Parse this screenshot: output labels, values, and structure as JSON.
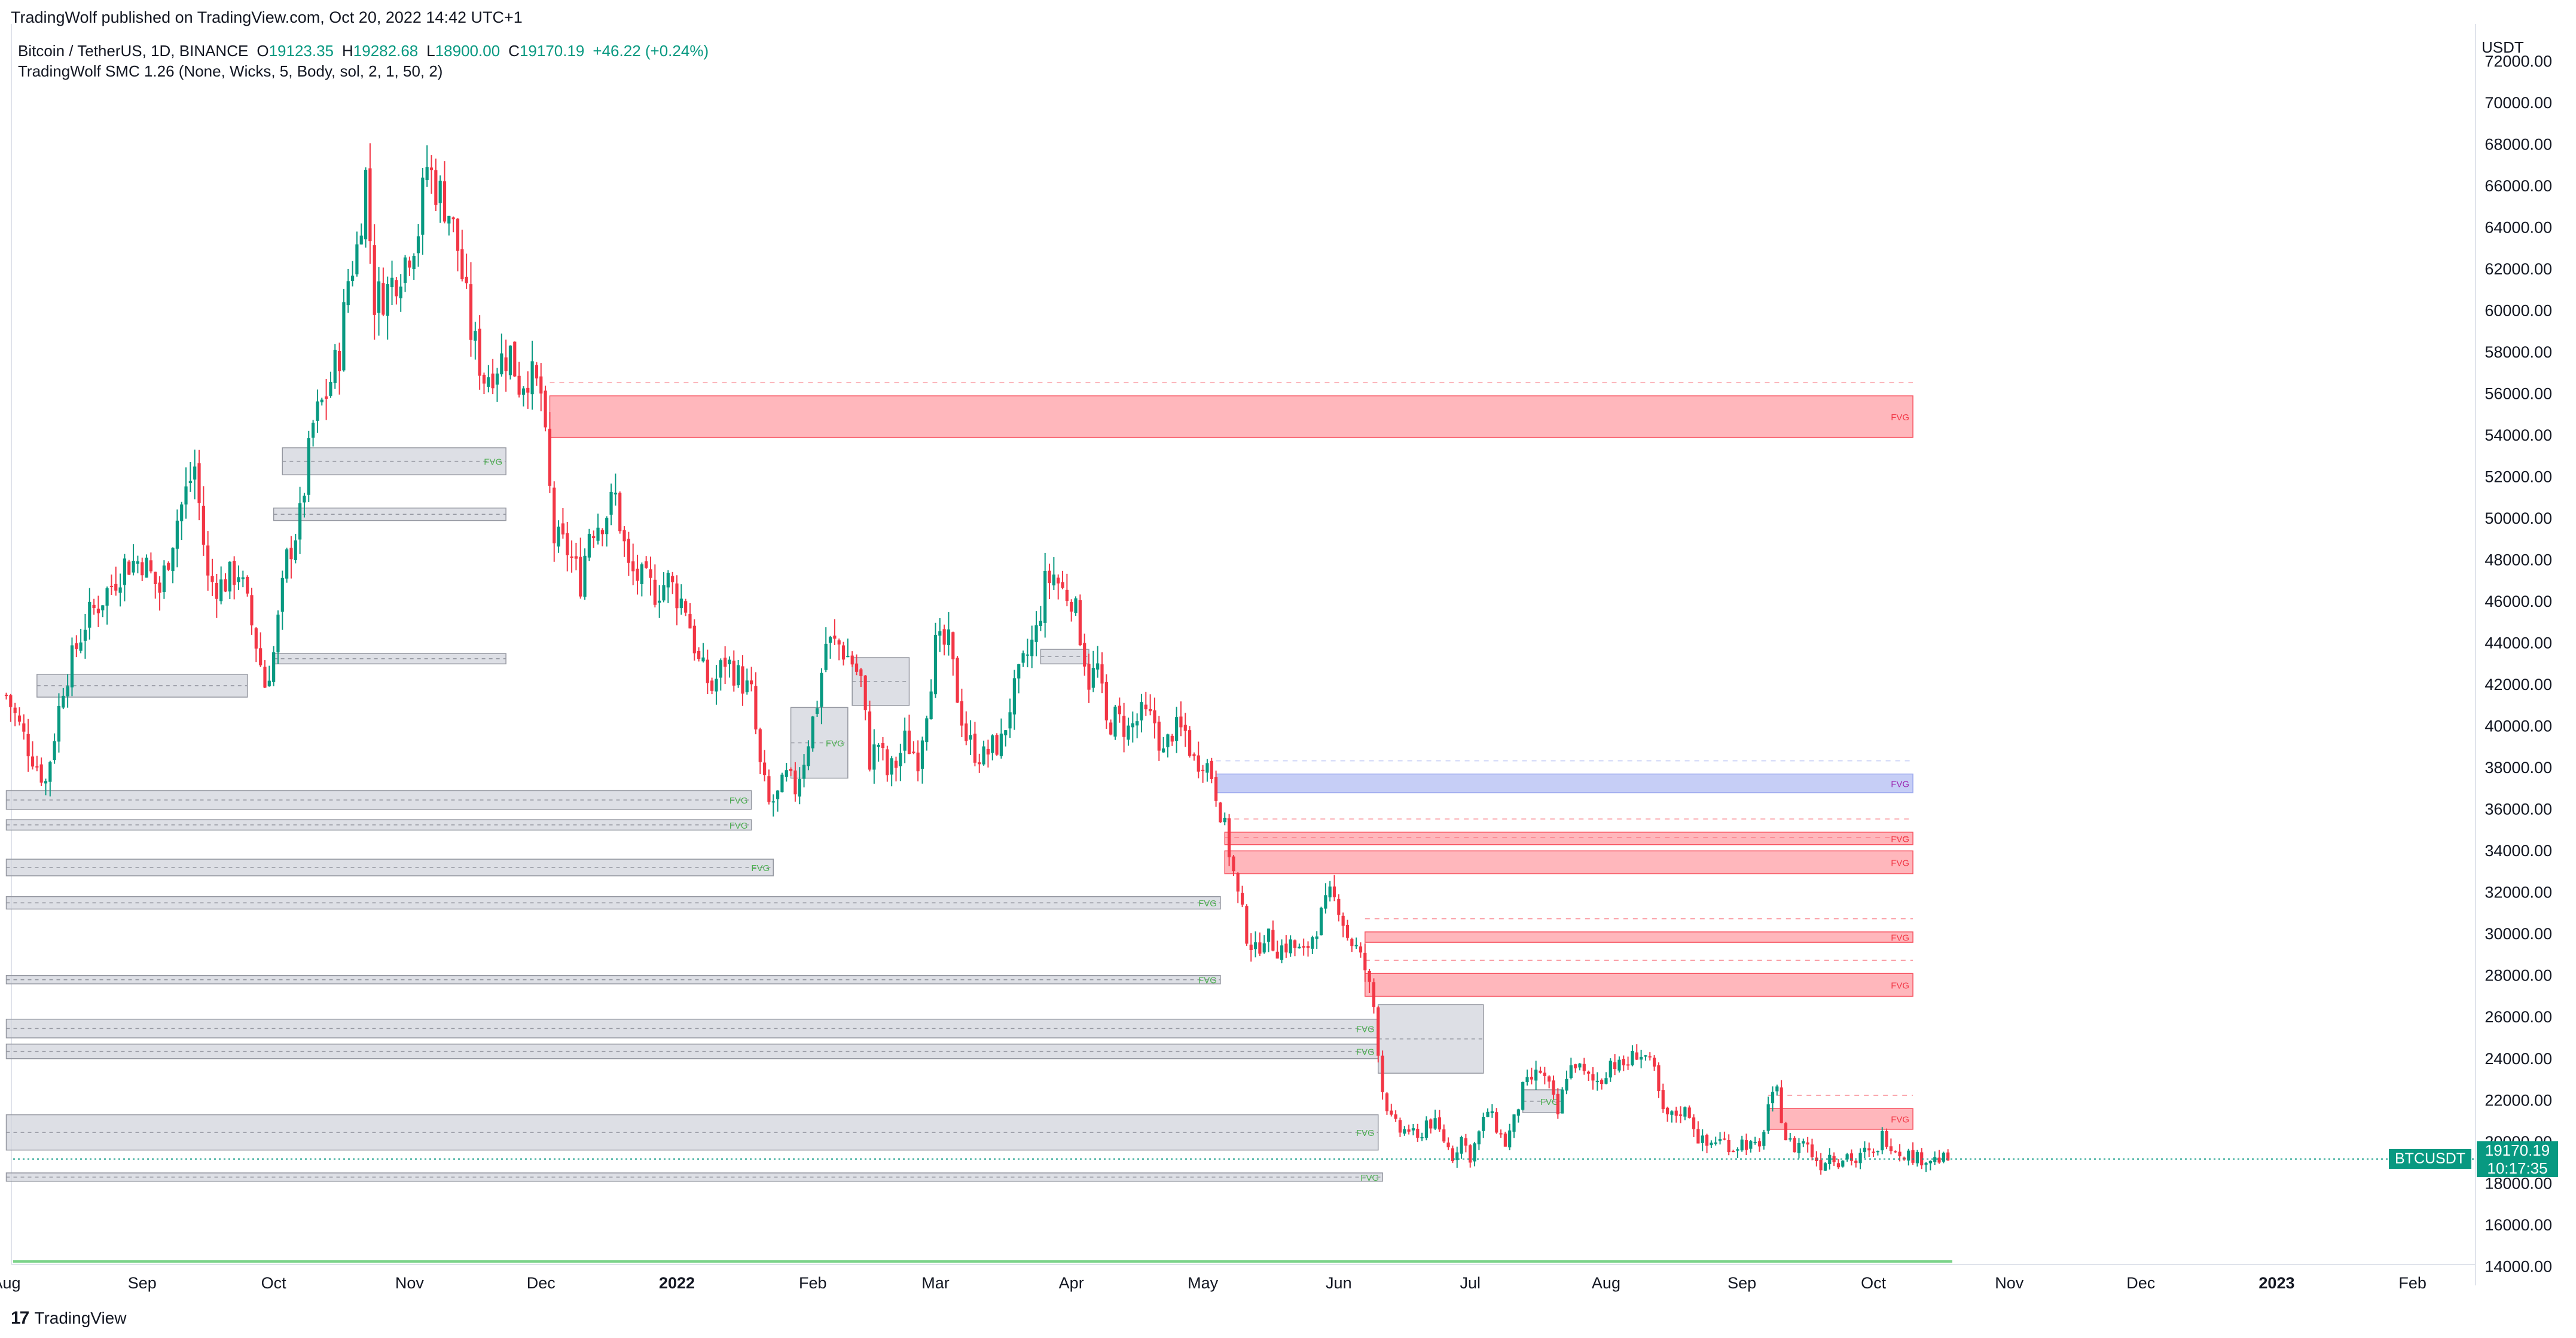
{
  "header": {
    "published": "TradingWolf published on TradingView.com, Oct 20, 2022 14:42 UTC+1",
    "symbol": "Bitcoin / TetherUS, 1D, BINANCE",
    "o_key": "O",
    "o_val": "19123.35",
    "h_key": "H",
    "h_val": "19282.68",
    "l_key": "L",
    "l_val": "18900.00",
    "c_key": "C",
    "c_val": "19170.19",
    "change": "+46.22 (+0.24%)",
    "indicator": "TradingWolf SMC 1.26 (None, Wicks, 5, Body, sol, 2, 1, 50, 2)"
  },
  "axis": {
    "currency": "USDT"
  },
  "last_price": {
    "symbol_tag": "BTCUSDT",
    "price": "19170.19",
    "countdown": "10:17:35"
  },
  "footer": {
    "brand_mark": "17",
    "brand": "TradingView"
  },
  "colors": {
    "up": "#089981",
    "down": "#f23645",
    "fvg_red": "#ffb3b8",
    "fvg_blue": "#c3cbf5",
    "ob_grey": "#d1d4dc"
  },
  "chart_data": {
    "type": "candlestick",
    "ylim": [
      12800,
      73800
    ],
    "y_ticks": [
      14000,
      16000,
      18000,
      20000,
      22000,
      24000,
      26000,
      28000,
      30000,
      32000,
      34000,
      36000,
      38000,
      40000,
      42000,
      44000,
      46000,
      48000,
      50000,
      52000,
      54000,
      56000,
      58000,
      60000,
      62000,
      64000,
      66000,
      68000,
      70000,
      72000
    ],
    "x_ticks": [
      {
        "label": "Aug",
        "d": -153,
        "bold": false
      },
      {
        "label": "Sep",
        "d": -122,
        "bold": false
      },
      {
        "label": "Oct",
        "d": -92,
        "bold": false
      },
      {
        "label": "Nov",
        "d": -61,
        "bold": false
      },
      {
        "label": "Dec",
        "d": -31,
        "bold": false
      },
      {
        "label": "2022",
        "d": 0,
        "bold": true
      },
      {
        "label": "Feb",
        "d": 31,
        "bold": false
      },
      {
        "label": "Mar",
        "d": 59,
        "bold": false
      },
      {
        "label": "Apr",
        "d": 90,
        "bold": false
      },
      {
        "label": "May",
        "d": 120,
        "bold": false
      },
      {
        "label": "Jun",
        "d": 151,
        "bold": false
      },
      {
        "label": "Jul",
        "d": 181,
        "bold": false
      },
      {
        "label": "Aug",
        "d": 212,
        "bold": false
      },
      {
        "label": "Sep",
        "d": 243,
        "bold": false
      },
      {
        "label": "Oct",
        "d": 273,
        "bold": false
      },
      {
        "label": "Nov",
        "d": 304,
        "bold": false
      },
      {
        "label": "Dec",
        "d": 334,
        "bold": false
      },
      {
        "label": "2023",
        "d": 365,
        "bold": true
      },
      {
        "label": "Feb",
        "d": 396,
        "bold": false
      }
    ],
    "close_path": [
      [
        -153,
        41500
      ],
      [
        -148,
        39000
      ],
      [
        -144,
        37300
      ],
      [
        -140,
        42000
      ],
      [
        -135,
        45000
      ],
      [
        -130,
        46500
      ],
      [
        -126,
        47800
      ],
      [
        -122,
        48000
      ],
      [
        -118,
        46500
      ],
      [
        -114,
        50000
      ],
      [
        -110,
        52500
      ],
      [
        -107,
        47000
      ],
      [
        -104,
        46800
      ],
      [
        -100,
        47500
      ],
      [
        -96,
        44000
      ],
      [
        -94,
        42000
      ],
      [
        -92,
        43500
      ],
      [
        -89,
        48000
      ],
      [
        -86,
        50000
      ],
      [
        -83,
        54500
      ],
      [
        -80,
        56000
      ],
      [
        -77,
        58000
      ],
      [
        -75,
        61500
      ],
      [
        -73,
        63000
      ],
      [
        -71,
        66500
      ],
      [
        -69,
        60500
      ],
      [
        -66,
        61000
      ],
      [
        -62,
        62500
      ],
      [
        -59,
        64000
      ],
      [
        -57,
        67000
      ],
      [
        -55,
        66000
      ],
      [
        -52,
        64800
      ],
      [
        -50,
        63000
      ],
      [
        -47,
        59000
      ],
      [
        -44,
        56800
      ],
      [
        -41,
        57500
      ],
      [
        -38,
        58000
      ],
      [
        -36,
        56500
      ],
      [
        -34,
        57000
      ],
      [
        -31,
        56000
      ],
      [
        -30,
        53500
      ],
      [
        -28,
        49000
      ],
      [
        -25,
        48500
      ],
      [
        -22,
        47000
      ],
      [
        -20,
        49500
      ],
      [
        -17,
        50000
      ],
      [
        -14,
        51000
      ],
      [
        -11,
        47500
      ],
      [
        -8,
        47000
      ],
      [
        -5,
        46500
      ],
      [
        -2,
        47000
      ],
      [
        0,
        46300
      ],
      [
        2,
        45800
      ],
      [
        5,
        43000
      ],
      [
        8,
        41800
      ],
      [
        11,
        43200
      ],
      [
        14,
        42400
      ],
      [
        17,
        41500
      ],
      [
        19,
        38000
      ],
      [
        21,
        36200
      ],
      [
        23,
        36600
      ],
      [
        25,
        37500
      ],
      [
        27,
        37000
      ],
      [
        29,
        38500
      ],
      [
        32,
        41200
      ],
      [
        34,
        44000
      ],
      [
        37,
        43900
      ],
      [
        40,
        43100
      ],
      [
        42,
        42200
      ],
      [
        44,
        38400
      ],
      [
        46,
        39200
      ],
      [
        48,
        37700
      ],
      [
        50,
        38200
      ],
      [
        52,
        39300
      ],
      [
        55,
        38500
      ],
      [
        57,
        41000
      ],
      [
        59,
        43800
      ],
      [
        62,
        43900
      ],
      [
        64,
        41500
      ],
      [
        66,
        39500
      ],
      [
        68,
        38800
      ],
      [
        70,
        38500
      ],
      [
        72,
        39000
      ],
      [
        74,
        39200
      ],
      [
        76,
        41000
      ],
      [
        79,
        42900
      ],
      [
        82,
        44500
      ],
      [
        84,
        46800
      ],
      [
        86,
        47300
      ],
      [
        88,
        46500
      ],
      [
        90,
        46300
      ],
      [
        92,
        44500
      ],
      [
        94,
        42200
      ],
      [
        96,
        42800
      ],
      [
        98,
        40000
      ],
      [
        100,
        40400
      ],
      [
        103,
        39800
      ],
      [
        106,
        40500
      ],
      [
        109,
        40200
      ],
      [
        111,
        38600
      ],
      [
        113,
        39800
      ],
      [
        116,
        39700
      ],
      [
        118,
        38300
      ],
      [
        120,
        38500
      ],
      [
        122,
        37700
      ],
      [
        124,
        36000
      ],
      [
        126,
        34000
      ],
      [
        128,
        31800
      ],
      [
        130,
        30000
      ],
      [
        132,
        29100
      ],
      [
        134,
        30000
      ],
      [
        137,
        29300
      ],
      [
        140,
        29500
      ],
      [
        143,
        29000
      ],
      [
        146,
        30400
      ],
      [
        149,
        31800
      ],
      [
        151,
        31400
      ],
      [
        153,
        29900
      ],
      [
        155,
        29300
      ],
      [
        157,
        28300
      ],
      [
        159,
        26500
      ],
      [
        161,
        22500
      ],
      [
        163,
        21000
      ],
      [
        165,
        20500
      ],
      [
        167,
        20600
      ],
      [
        169,
        20000
      ],
      [
        171,
        21000
      ],
      [
        173,
        20800
      ],
      [
        175,
        20100
      ],
      [
        177,
        19300
      ],
      [
        179,
        20200
      ],
      [
        181,
        19300
      ],
      [
        183,
        20400
      ],
      [
        185,
        21500
      ],
      [
        187,
        20700
      ],
      [
        189,
        19900
      ],
      [
        191,
        21000
      ],
      [
        193,
        22500
      ],
      [
        195,
        23000
      ],
      [
        197,
        23400
      ],
      [
        199,
        22600
      ],
      [
        201,
        21300
      ],
      [
        203,
        23300
      ],
      [
        205,
        23800
      ],
      [
        207,
        23200
      ],
      [
        209,
        22900
      ],
      [
        211,
        23000
      ],
      [
        213,
        23900
      ],
      [
        215,
        23600
      ],
      [
        217,
        23800
      ],
      [
        219,
        24300
      ],
      [
        221,
        24100
      ],
      [
        223,
        23300
      ],
      [
        225,
        21300
      ],
      [
        227,
        21200
      ],
      [
        229,
        21500
      ],
      [
        231,
        21400
      ],
      [
        233,
        20200
      ],
      [
        235,
        19800
      ],
      [
        237,
        20100
      ],
      [
        239,
        20000
      ],
      [
        241,
        19700
      ],
      [
        243,
        20000
      ],
      [
        245,
        19800
      ],
      [
        247,
        19600
      ],
      [
        249,
        21800
      ],
      [
        251,
        22300
      ],
      [
        253,
        20200
      ],
      [
        255,
        19700
      ],
      [
        257,
        20100
      ],
      [
        259,
        19400
      ],
      [
        261,
        18900
      ],
      [
        263,
        19400
      ],
      [
        265,
        19100
      ],
      [
        267,
        19400
      ],
      [
        269,
        19000
      ],
      [
        271,
        19500
      ],
      [
        273,
        19300
      ],
      [
        275,
        20300
      ],
      [
        277,
        19900
      ],
      [
        279,
        19500
      ],
      [
        281,
        19400
      ],
      [
        283,
        19200
      ],
      [
        285,
        19200
      ],
      [
        287,
        19150
      ],
      [
        290,
        19170
      ]
    ],
    "zones": [
      {
        "type": "fvg_red",
        "d1": -29,
        "d2": 282,
        "y1": 53900,
        "y2": 55900,
        "label": "FVG"
      },
      {
        "type": "fvg_blue",
        "d1": 123,
        "d2": 282,
        "y1": 36800,
        "y2": 37700,
        "label": "FVG"
      },
      {
        "type": "fvg_red",
        "d1": 125,
        "d2": 282,
        "y1": 34300,
        "y2": 34900,
        "label": "FVG"
      },
      {
        "type": "fvg_red",
        "d1": 125,
        "d2": 282,
        "y1": 32900,
        "y2": 34000,
        "label": "FVG"
      },
      {
        "type": "fvg_red",
        "d1": 157,
        "d2": 282,
        "y1": 29600,
        "y2": 30100,
        "label": "FVG"
      },
      {
        "type": "fvg_red",
        "d1": 157,
        "d2": 282,
        "y1": 27000,
        "y2": 28100,
        "label": "FVG"
      },
      {
        "type": "fvg_red",
        "d1": 249,
        "d2": 282,
        "y1": 20600,
        "y2": 21600,
        "label": "FVG"
      },
      {
        "type": "ob",
        "d1": -153,
        "d2": 17,
        "y1": 36000,
        "y2": 36900,
        "label": "FVG"
      },
      {
        "type": "ob",
        "d1": -153,
        "d2": 17,
        "y1": 35000,
        "y2": 35500,
        "label": "FVG"
      },
      {
        "type": "ob",
        "d1": -153,
        "d2": 22,
        "y1": 32800,
        "y2": 33600,
        "label": "FVG"
      },
      {
        "type": "ob",
        "d1": -153,
        "d2": 124,
        "y1": 31200,
        "y2": 31800,
        "label": "FVG"
      },
      {
        "type": "ob",
        "d1": -153,
        "d2": 124,
        "y1": 27600,
        "y2": 28000,
        "label": "FVG"
      },
      {
        "type": "ob",
        "d1": -153,
        "d2": 160,
        "y1": 25000,
        "y2": 25900,
        "label": "FVG"
      },
      {
        "type": "ob",
        "d1": -153,
        "d2": 160,
        "y1": 24000,
        "y2": 24700,
        "label": "FVG"
      },
      {
        "type": "ob",
        "d1": -153,
        "d2": 160,
        "y1": 19600,
        "y2": 21300,
        "label": "FVG"
      },
      {
        "type": "ob",
        "d1": -153,
        "d2": 161,
        "y1": 18100,
        "y2": 18500,
        "label": "FVG"
      },
      {
        "type": "ob",
        "d1": 160,
        "d2": 184,
        "y1": 23300,
        "y2": 26600,
        "label": ""
      },
      {
        "type": "ob",
        "d1": -146,
        "d2": -98,
        "y1": 41400,
        "y2": 42500,
        "label": ""
      },
      {
        "type": "ob",
        "d1": -92,
        "d2": -39,
        "y1": 43000,
        "y2": 43500,
        "label": ""
      },
      {
        "type": "ob",
        "d1": -92,
        "d2": -39,
        "y1": 49900,
        "y2": 50500,
        "label": ""
      },
      {
        "type": "ob",
        "d1": -90,
        "d2": -39,
        "y1": 52100,
        "y2": 53400,
        "label": "FVG"
      },
      {
        "type": "ob",
        "d1": 26,
        "d2": 39,
        "y1": 37500,
        "y2": 40900,
        "label": "FVG"
      },
      {
        "type": "ob",
        "d1": 40,
        "d2": 53,
        "y1": 41000,
        "y2": 43300,
        "label": ""
      },
      {
        "type": "ob",
        "d1": 193,
        "d2": 202,
        "y1": 21400,
        "y2": 22500,
        "label": "FVG"
      },
      {
        "type": "ob",
        "d1": 83,
        "d2": 94,
        "y1": 43000,
        "y2": 43700,
        "label": ""
      }
    ]
  }
}
